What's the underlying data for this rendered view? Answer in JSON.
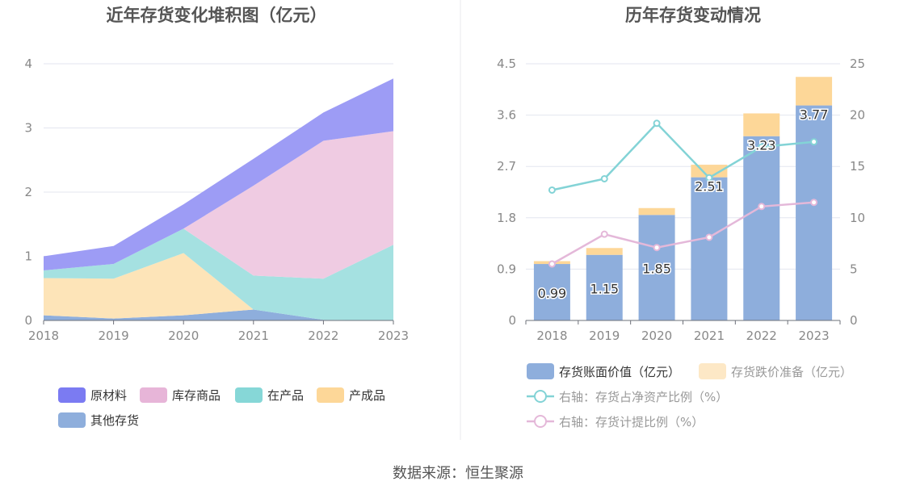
{
  "source": "数据来源：恒生聚源",
  "chart_data": [
    {
      "type": "area",
      "stacked": true,
      "title": "近年存货变化堆积图（亿元）",
      "x": [
        "2018",
        "2019",
        "2020",
        "2021",
        "2022",
        "2023"
      ],
      "ylim": [
        0,
        4
      ],
      "yticks": [
        "0",
        "1",
        "2",
        "3",
        "4"
      ],
      "grid": true,
      "legend_position": "bottom",
      "series": [
        {
          "name": "其他存货",
          "color": "#8eaedc",
          "values": [
            0.08,
            0.03,
            0.08,
            0.17,
            0.01,
            0.0
          ]
        },
        {
          "name": "产成品",
          "color": "#fde4b8",
          "values": [
            0.58,
            0.62,
            0.97,
            0.0,
            0.0,
            0.0
          ]
        },
        {
          "name": "在产品",
          "color": "#a5e1e1",
          "values": [
            0.12,
            0.23,
            0.38,
            0.53,
            0.64,
            1.18
          ]
        },
        {
          "name": "库存商品",
          "color": "#efcbe2",
          "values": [
            0.0,
            0.0,
            0.0,
            1.4,
            2.15,
            1.77
          ]
        },
        {
          "name": "原材料",
          "color": "#9d9cf5",
          "values": [
            0.22,
            0.28,
            0.38,
            0.42,
            0.44,
            0.82
          ]
        }
      ],
      "legend_order": [
        "原材料",
        "库存商品",
        "在产品",
        "产成品",
        "其他存货"
      ],
      "legend_colors": {
        "原材料": "#7b7bf2",
        "库存商品": "#e7b5d8",
        "在产品": "#86d7d7",
        "产成品": "#fdd798",
        "其他存货": "#8eaedc"
      }
    },
    {
      "type": "bar",
      "title": "历年存货变动情况",
      "categories": [
        "2018",
        "2019",
        "2020",
        "2021",
        "2022",
        "2023"
      ],
      "ylim": [
        0,
        4.5
      ],
      "yticks": [
        "0",
        "0.9",
        "1.8",
        "2.7",
        "3.6",
        "4.5"
      ],
      "y2lim": [
        0,
        25
      ],
      "y2ticks": [
        "0",
        "5",
        "10",
        "15",
        "20",
        "25"
      ],
      "grid": true,
      "legend_position": "bottom",
      "series": [
        {
          "name": "存货账面价值（亿元）",
          "kind": "bar",
          "color": "#8eaedc",
          "values": [
            0.99,
            1.15,
            1.85,
            2.51,
            3.23,
            3.77
          ],
          "labels": [
            "0.99",
            "1.15",
            "1.85",
            "2.51",
            "3.23",
            "3.77"
          ]
        },
        {
          "name": "存货跌价准备（亿元）",
          "kind": "bar-stack",
          "color": "#fdd798",
          "legend_color": "#fde8c6",
          "values": [
            0.05,
            0.12,
            0.12,
            0.22,
            0.4,
            0.5
          ]
        },
        {
          "name": "右轴：存货占净资产比例（%）",
          "kind": "line",
          "axis": "right",
          "color": "#83d3d6",
          "values": [
            12.7,
            13.8,
            19.2,
            13.9,
            16.9,
            17.4
          ]
        },
        {
          "name": "右轴：存货计提比例（%）",
          "kind": "line",
          "axis": "right",
          "color": "#e4b8d9",
          "values": [
            5.5,
            8.4,
            7.1,
            8.1,
            11.1,
            11.5
          ]
        }
      ]
    }
  ]
}
